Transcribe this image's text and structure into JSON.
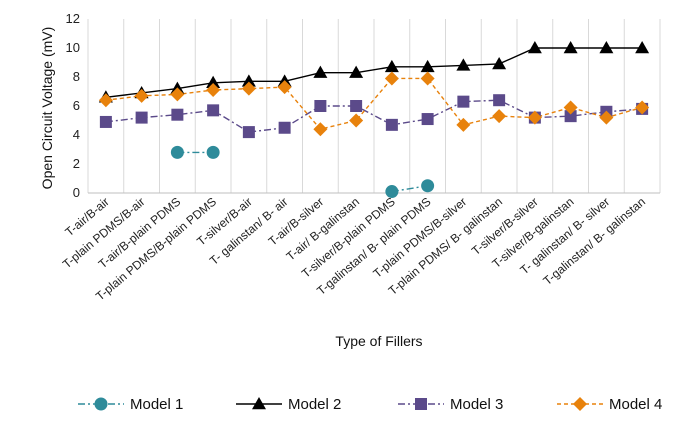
{
  "chart_data": {
    "type": "line",
    "title": "",
    "xlabel": "Type of Fillers",
    "ylabel": "Open Circuit Voltage (mV)",
    "ylim": [
      0,
      12
    ],
    "yticks": [
      0,
      2,
      4,
      6,
      8,
      10,
      12
    ],
    "grid": "vertical",
    "legend_position": "bottom",
    "categories": [
      "T-air/B-air",
      "T-plain PDMS/B-air",
      "T-air/B-plain PDMS",
      "T-plain PDMS/B-plain PDMS",
      "T-silver/B-air",
      "T- galinstan/ B- air",
      "T-air/B-silver",
      "T-air/ B-galinstan",
      "T-silver/B-plain PDMS",
      "T-galinstan/ B- plain PDMS",
      "T-plain PDMS/B-silver",
      "T-plain PDMS/ B- galinstan",
      "T-silver/B-silver",
      "T-silver/B-galinstan",
      "T- galinstan/ B- silver",
      "T-galinstan/ B- galinstan"
    ],
    "series": [
      {
        "name": "Model 1",
        "color": "#2e8b9a",
        "marker": "circle",
        "line": "dash-dot",
        "values": [
          null,
          null,
          2.8,
          2.8,
          null,
          null,
          null,
          null,
          0.1,
          0.5,
          null,
          null,
          null,
          null,
          null,
          null
        ]
      },
      {
        "name": "Model 2",
        "color": "#000000",
        "marker": "triangle",
        "line": "solid",
        "values": [
          6.6,
          6.9,
          7.2,
          7.6,
          7.7,
          7.7,
          8.3,
          8.3,
          8.7,
          8.7,
          8.8,
          8.9,
          10.0,
          10.0,
          10.0,
          10.0
        ]
      },
      {
        "name": "Model 3",
        "color": "#5b4a8a",
        "marker": "square",
        "line": "dash-dot",
        "values": [
          4.9,
          5.2,
          5.4,
          5.7,
          4.2,
          4.5,
          6.0,
          6.0,
          4.7,
          5.1,
          6.3,
          6.4,
          5.2,
          5.3,
          5.6,
          5.8
        ]
      },
      {
        "name": "Model 4",
        "color": "#e8820c",
        "marker": "diamond",
        "line": "dashed",
        "values": [
          6.4,
          6.7,
          6.8,
          7.1,
          7.2,
          7.3,
          4.4,
          5.0,
          7.9,
          7.9,
          4.7,
          5.3,
          5.2,
          5.9,
          5.2,
          5.9
        ]
      }
    ]
  }
}
